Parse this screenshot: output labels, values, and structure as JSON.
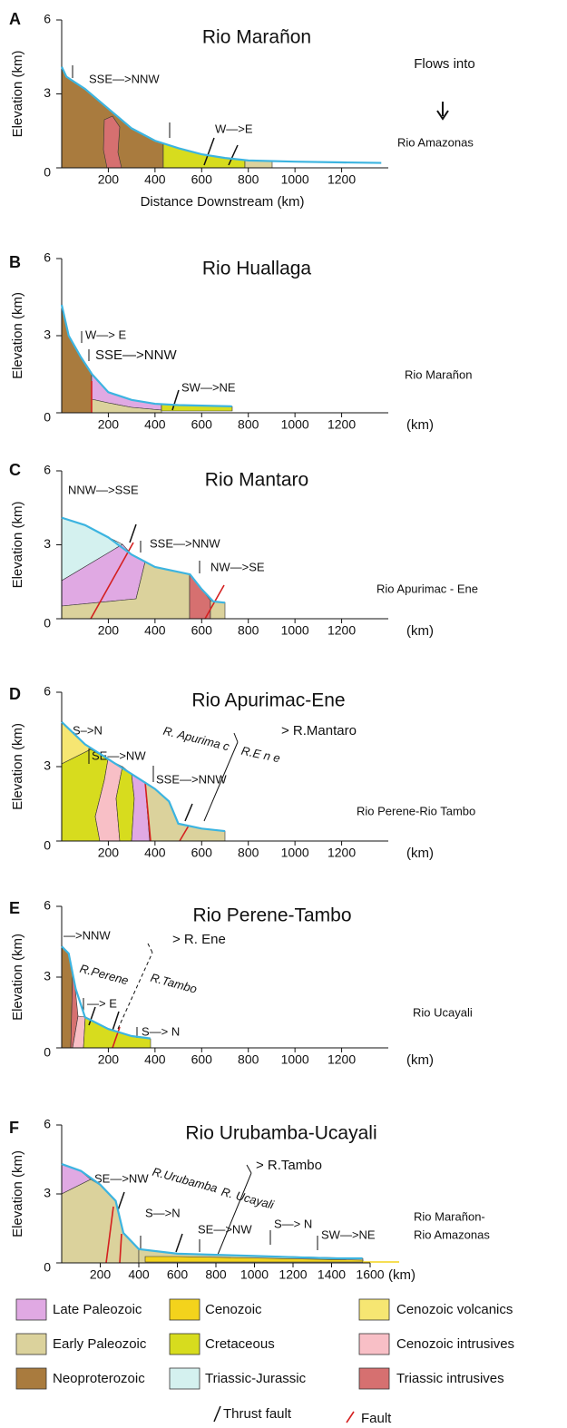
{
  "chart_data": [
    {
      "type": "line",
      "panel": "A",
      "title": "Rio Marañon",
      "y_label": "Elevation (km)",
      "x_label": "Distance Downstream (km)",
      "outlet": [
        "Rio Amazonas"
      ],
      "annotations": [
        "SSE—>NNW",
        "W—>E",
        "Flows into"
      ],
      "x": [
        0,
        20,
        100,
        200,
        300,
        400,
        500,
        600,
        700,
        800,
        1000,
        1200,
        1370
      ],
      "values": [
        4.1,
        3.7,
        3.2,
        2.4,
        1.6,
        1.1,
        0.8,
        0.55,
        0.4,
        0.3,
        0.25,
        0.22,
        0.2
      ],
      "color": "#3cb4e0",
      "xlim": [
        0,
        1400
      ],
      "ylim": [
        0,
        6
      ],
      "xticks": [
        200,
        400,
        600,
        800,
        1000,
        1200
      ],
      "yticks": [
        0,
        3,
        6
      ]
    },
    {
      "type": "line",
      "panel": "B",
      "title": "Rio Huallaga",
      "y_label": "Elevation (km)",
      "x_label": "(km)",
      "outlet": [
        "Rio Marañon"
      ],
      "annotations": [
        "W—> E",
        "SSE—>NNW",
        "SW—>NE"
      ],
      "x": [
        0,
        30,
        80,
        130,
        200,
        300,
        400,
        500,
        730
      ],
      "values": [
        4.2,
        3.0,
        2.2,
        1.5,
        0.8,
        0.5,
        0.35,
        0.3,
        0.25
      ],
      "color": "#3cb4e0",
      "xlim": [
        0,
        1400
      ],
      "ylim": [
        0,
        6
      ],
      "xticks": [
        200,
        400,
        600,
        800,
        1000,
        1200
      ],
      "yticks": [
        0,
        3,
        6
      ]
    },
    {
      "type": "line",
      "panel": "C",
      "title": "Rio Mantaro",
      "y_label": "Elevation (km)",
      "x_label": "(km)",
      "outlet": [
        "Rio Apurimac - Ene"
      ],
      "annotations": [
        "NNW—>SSE",
        "SSE—>NNW",
        "NW—>SE"
      ],
      "x": [
        0,
        100,
        200,
        300,
        400,
        550,
        600,
        650,
        700
      ],
      "values": [
        4.1,
        3.8,
        3.3,
        2.6,
        2.1,
        1.8,
        1.2,
        0.7,
        0.65
      ],
      "color": "#3cb4e0",
      "xlim": [
        0,
        1400
      ],
      "ylim": [
        0,
        6
      ],
      "xticks": [
        200,
        400,
        600,
        800,
        1000,
        1200
      ],
      "yticks": [
        0,
        3,
        6
      ]
    },
    {
      "type": "line",
      "panel": "D",
      "title": "Rio Apurimac-Ene",
      "y_label": "Elevation (km)",
      "x_label": "(km)",
      "outlet": [
        "Rio Perene-Rio Tambo"
      ],
      "annotations": [
        "S–>N",
        "SE—>NW",
        "R. Apurima c",
        "R.E n e",
        "> R.Mantaro",
        "SSE—>NNW"
      ],
      "x": [
        0,
        100,
        200,
        300,
        400,
        460,
        500,
        600,
        700
      ],
      "values": [
        4.8,
        3.9,
        3.3,
        2.7,
        2.1,
        1.6,
        0.7,
        0.5,
        0.4
      ],
      "color": "#3cb4e0",
      "xlim": [
        0,
        1400
      ],
      "ylim": [
        0,
        6
      ],
      "xticks": [
        200,
        400,
        600,
        800,
        1000,
        1200
      ],
      "yticks": [
        0,
        3,
        6
      ]
    },
    {
      "type": "line",
      "panel": "E",
      "title": "Rio Perene-Tambo",
      "y_label": "Elevation (km)",
      "x_label": "(km)",
      "outlet": [
        "Rio Ucayali"
      ],
      "annotations": [
        "—>NNW",
        "R.Perene",
        "> R. Ene",
        "R.Tambo",
        "—> E",
        "S—> N"
      ],
      "x": [
        0,
        30,
        60,
        100,
        200,
        300,
        380
      ],
      "values": [
        4.3,
        4.0,
        2.5,
        1.3,
        0.8,
        0.5,
        0.4
      ],
      "color": "#3cb4e0",
      "xlim": [
        0,
        1400
      ],
      "ylim": [
        0,
        6
      ],
      "xticks": [
        200,
        400,
        600,
        800,
        1000,
        1200
      ],
      "yticks": [
        0,
        3,
        6
      ]
    },
    {
      "type": "line",
      "panel": "F",
      "title": "Rio Urubamba-Ucayali",
      "y_label": "Elevation (km)",
      "x_label": "(km)",
      "outlet": [
        "Rio Marañon-",
        "Rio Amazonas"
      ],
      "annotations": [
        "SE—>NW",
        "R.Urubamba",
        "R. Ucayali",
        "> R.Tambo",
        "S—>N",
        "SE—>NW",
        "S—> N",
        "SW—>NE"
      ],
      "x": [
        0,
        100,
        200,
        280,
        320,
        400,
        600,
        800,
        1000,
        1200,
        1400,
        1560
      ],
      "values": [
        4.3,
        4.0,
        3.4,
        2.7,
        1.3,
        0.6,
        0.4,
        0.35,
        0.3,
        0.25,
        0.2,
        0.2
      ],
      "color": "#3cb4e0",
      "xlim": [
        0,
        1600
      ],
      "ylim": [
        0,
        6
      ],
      "xticks": [
        200,
        400,
        600,
        800,
        1000,
        1200,
        1400,
        1600
      ],
      "yticks": [
        0,
        3,
        6
      ]
    }
  ],
  "legend": [
    {
      "name": "Late Paleozoic",
      "color": "#e0a9e3"
    },
    {
      "name": "Cenozoic",
      "color": "#f3d31c"
    },
    {
      "name": "Cenozoic volcanics",
      "color": "#f6e672"
    },
    {
      "name": "Early Paleozoic",
      "color": "#dbd29c"
    },
    {
      "name": "Cretaceous",
      "color": "#d7dc1e"
    },
    {
      "name": "Cenozoic intrusives",
      "color": "#f8bfc6"
    },
    {
      "name": "Neoproterozoic",
      "color": "#a97b3e"
    },
    {
      "name": "Triassic-Jurassic",
      "color": "#d4f1ef"
    },
    {
      "name": "Triassic intrusives",
      "color": "#d67070"
    }
  ],
  "fault_legend": [
    "Thrust fault",
    "Fault"
  ]
}
